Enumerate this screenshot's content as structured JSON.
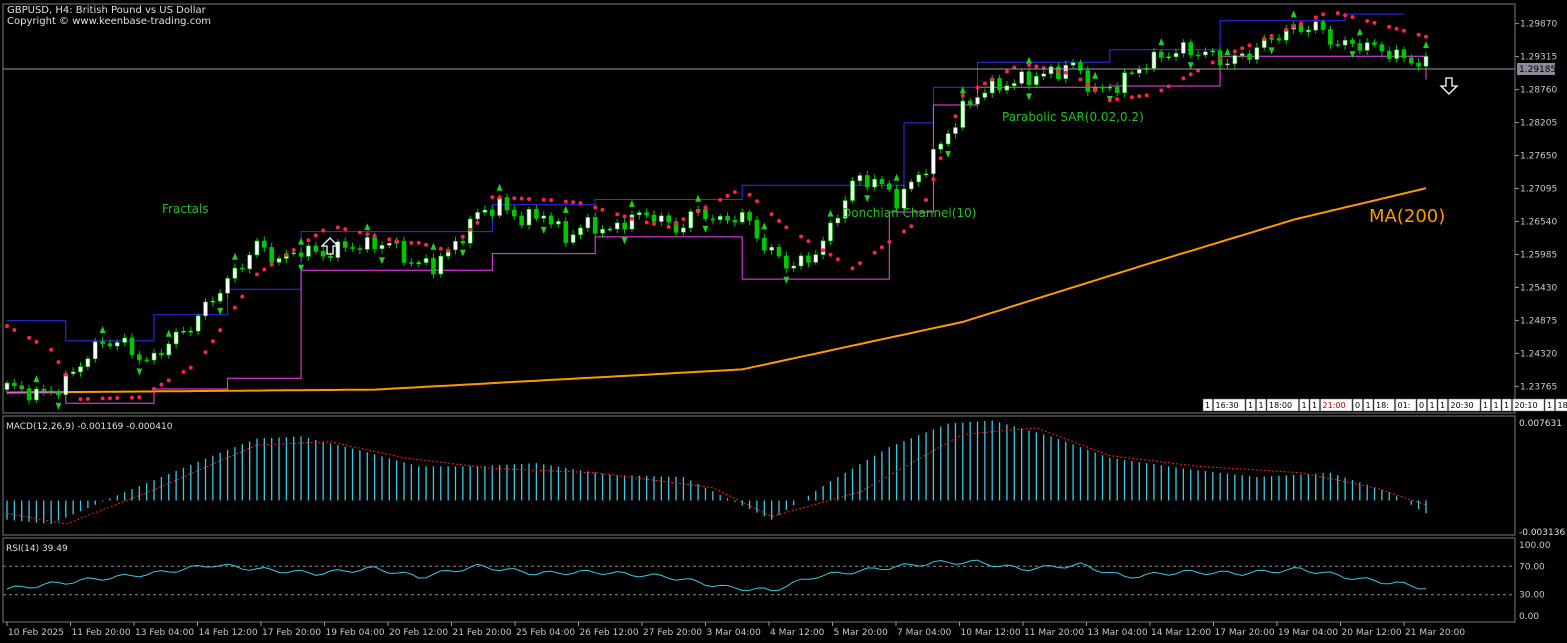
{
  "header": {
    "title": "GBPUSD, H4:  British Pound vs US Dollar",
    "copyright": "Copyright © www.keenbase-trading.com"
  },
  "price_panel": {
    "current_price_label": "1.29185",
    "y_ticks": [
      "1.29870",
      "1.29315",
      "1.28760",
      "1.28205",
      "1.27650",
      "1.27095",
      "1.26540",
      "1.25985",
      "1.25430",
      "1.24875",
      "1.24320",
      "1.23765"
    ],
    "annotations": {
      "fractals": "Fractals",
      "donchian": "Donchian Channel(10)",
      "sar": "Parabolic SAR(0.02,0.2)",
      "ma": "MA(200)"
    },
    "session_strip": [
      "1",
      "16:30",
      "1",
      "1",
      "18:00",
      "1",
      "1",
      "21:00",
      "0",
      "1",
      "18:",
      "01:",
      "0",
      "1",
      "1",
      "20:30",
      "1",
      "1",
      "1",
      "20:10",
      "1",
      "18"
    ]
  },
  "macd_panel": {
    "label": "MACD(12,26,9) -0.001169 -0.000410",
    "y_top": "0.007631",
    "y_bottom": "-0.003136"
  },
  "rsi_panel": {
    "label": "RSI(14) 39.49",
    "y_ticks": [
      "100.00",
      "70.00",
      "30.00",
      "0.00"
    ]
  },
  "x_axis": {
    "labels": [
      "10 Feb 2025",
      "11 Feb 20:00",
      "13 Feb 04:00",
      "14 Feb 12:00",
      "17 Feb 20:00",
      "19 Feb 04:00",
      "20 Feb 12:00",
      "21 Feb 20:00",
      "25 Feb 04:00",
      "26 Feb 12:00",
      "27 Feb 20:00",
      "3 Mar 04:00",
      "4 Mar 12:00",
      "5 Mar 20:00",
      "7 Mar 04:00",
      "10 Mar 12:00",
      "11 Mar 20:00",
      "13 Mar 04:00",
      "14 Mar 12:00",
      "17 Mar 20:00",
      "19 Mar 04:00",
      "20 Mar 12:00",
      "21 Mar 20:00"
    ]
  },
  "colors": {
    "background": "#000000",
    "bull_candle": "#ffffff",
    "bear_candle": "#00c800",
    "ma": "#ff9900",
    "sar": "#ff2050",
    "donchian_upper": "#3030ff",
    "donchian_lower": "#ff40ff",
    "macd_hist": "#3ec8e8",
    "macd_signal": "#ff2020",
    "rsi": "#3ec8e8",
    "text": "#c8c8c8",
    "annotation": "#22c022",
    "ma_label": "#ff9900"
  },
  "chart_data": {
    "type": "candlestick",
    "symbol": "GBPUSD",
    "timeframe": "H4",
    "ylim": [
      1.2335,
      1.3015
    ],
    "close_path": [
      [
        0,
        1.2377
      ],
      [
        4,
        1.2363
      ],
      [
        7,
        1.2372
      ],
      [
        10,
        1.2415
      ],
      [
        13,
        1.2452
      ],
      [
        16,
        1.2448
      ],
      [
        19,
        1.2415
      ],
      [
        22,
        1.245
      ],
      [
        25,
        1.2478
      ],
      [
        28,
        1.2525
      ],
      [
        31,
        1.2568
      ],
      [
        34,
        1.2615
      ],
      [
        37,
        1.2588
      ],
      [
        40,
        1.2607
      ],
      [
        43,
        1.2598
      ],
      [
        46,
        1.2612
      ],
      [
        49,
        1.2613
      ],
      [
        52,
        1.2619
      ],
      [
        55,
        1.2585
      ],
      [
        58,
        1.258
      ],
      [
        61,
        1.2615
      ],
      [
        64,
        1.2667
      ],
      [
        67,
        1.2682
      ],
      [
        70,
        1.2657
      ],
      [
        73,
        1.2667
      ],
      [
        76,
        1.2627
      ],
      [
        79,
        1.265
      ],
      [
        82,
        1.2637
      ],
      [
        85,
        1.2662
      ],
      [
        88,
        1.2665
      ],
      [
        91,
        1.264
      ],
      [
        94,
        1.2672
      ],
      [
        97,
        1.2653
      ],
      [
        100,
        1.2666
      ],
      [
        103,
        1.2613
      ],
      [
        106,
        1.2582
      ],
      [
        109,
        1.2587
      ],
      [
        112,
        1.264
      ],
      [
        115,
        1.272
      ],
      [
        118,
        1.2725
      ],
      [
        121,
        1.269
      ],
      [
        124,
        1.273
      ],
      [
        127,
        1.2783
      ],
      [
        130,
        1.2843
      ],
      [
        133,
        1.2877
      ],
      [
        136,
        1.2885
      ],
      [
        139,
        1.2896
      ],
      [
        142,
        1.2904
      ],
      [
        145,
        1.2918
      ],
      [
        148,
        1.2872
      ],
      [
        151,
        1.2883
      ],
      [
        154,
        1.2913
      ],
      [
        157,
        1.2933
      ],
      [
        160,
        1.2943
      ],
      [
        163,
        1.2937
      ],
      [
        166,
        1.2922
      ],
      [
        169,
        1.2937
      ],
      [
        172,
        1.2963
      ],
      [
        175,
        1.2978
      ],
      [
        178,
        1.2983
      ],
      [
        181,
        1.2951
      ],
      [
        184,
        1.2953
      ],
      [
        187,
        1.2943
      ],
      [
        190,
        1.2928
      ],
      [
        193,
        1.2919
      ]
    ],
    "ma200_path": [
      [
        0,
        1.2366
      ],
      [
        50,
        1.2371
      ],
      [
        100,
        1.2405
      ],
      [
        130,
        1.2485
      ],
      [
        155,
        1.2582
      ],
      [
        175,
        1.2657
      ],
      [
        193,
        1.271
      ]
    ],
    "sar_path": [
      [
        0,
        1.2478
      ],
      [
        6,
        1.2438
      ],
      [
        10,
        1.2355
      ],
      [
        18,
        1.2358
      ],
      [
        26,
        1.2415
      ],
      [
        34,
        1.2565
      ],
      [
        44,
        1.2647
      ],
      [
        54,
        1.2618
      ],
      [
        56,
        1.2618
      ],
      [
        60,
        1.2605
      ],
      [
        64,
        1.2652
      ],
      [
        66,
        1.2695
      ],
      [
        74,
        1.269
      ],
      [
        78,
        1.2685
      ],
      [
        86,
        1.2655
      ],
      [
        90,
        1.2645
      ],
      [
        100,
        1.271
      ],
      [
        106,
        1.2644
      ],
      [
        115,
        1.2575
      ],
      [
        124,
        1.2655
      ],
      [
        130,
        1.2866
      ],
      [
        138,
        1.292
      ],
      [
        145,
        1.2902
      ],
      [
        150,
        1.2858
      ],
      [
        156,
        1.2868
      ],
      [
        166,
        1.2935
      ],
      [
        180,
        1.3008
      ],
      [
        193,
        1.2965
      ]
    ],
    "donchian_upper_path": [
      [
        0,
        1.2487
      ],
      [
        8,
        1.2453
      ],
      [
        20,
        1.2497
      ],
      [
        30,
        1.254
      ],
      [
        40,
        1.2637
      ],
      [
        58,
        1.2637
      ],
      [
        66,
        1.2682
      ],
      [
        80,
        1.2691
      ],
      [
        92,
        1.2691
      ],
      [
        100,
        1.2715
      ],
      [
        112,
        1.2715
      ],
      [
        122,
        1.282
      ],
      [
        126,
        1.288
      ],
      [
        132,
        1.2922
      ],
      [
        150,
        1.2943
      ],
      [
        165,
        1.2992
      ],
      [
        182,
        1.3003
      ],
      [
        190,
        1.3003
      ]
    ],
    "donchian_lower_path": [
      [
        0,
        1.2366
      ],
      [
        8,
        1.2348
      ],
      [
        20,
        1.2372
      ],
      [
        30,
        1.239
      ],
      [
        40,
        1.2572
      ],
      [
        60,
        1.2572
      ],
      [
        66,
        1.26
      ],
      [
        80,
        1.2628
      ],
      [
        92,
        1.2628
      ],
      [
        100,
        1.2557
      ],
      [
        112,
        1.2557
      ],
      [
        120,
        1.267
      ],
      [
        126,
        1.285
      ],
      [
        132,
        1.288
      ],
      [
        150,
        1.2882
      ],
      [
        165,
        1.2932
      ],
      [
        182,
        1.2932
      ],
      [
        193,
        1.2893
      ]
    ],
    "macd_hist_path": [
      [
        0,
        -0.0018
      ],
      [
        6,
        -0.0022
      ],
      [
        14,
        0.0002
      ],
      [
        28,
        0.0042
      ],
      [
        34,
        0.0058
      ],
      [
        40,
        0.006
      ],
      [
        48,
        0.0047
      ],
      [
        56,
        0.0032
      ],
      [
        64,
        0.0032
      ],
      [
        72,
        0.0035
      ],
      [
        82,
        0.0024
      ],
      [
        92,
        0.0022
      ],
      [
        98,
        0.0002
      ],
      [
        104,
        -0.0018
      ],
      [
        112,
        0.0018
      ],
      [
        120,
        0.005
      ],
      [
        128,
        0.0072
      ],
      [
        134,
        0.0075
      ],
      [
        142,
        0.006
      ],
      [
        150,
        0.004
      ],
      [
        160,
        0.003
      ],
      [
        170,
        0.0022
      ],
      [
        180,
        0.0026
      ],
      [
        188,
        0.0008
      ],
      [
        193,
        -0.0012
      ]
    ],
    "macd_signal_path": [
      [
        0,
        -0.0012
      ],
      [
        8,
        -0.0022
      ],
      [
        20,
        0.001
      ],
      [
        34,
        0.0052
      ],
      [
        44,
        0.0055
      ],
      [
        54,
        0.004
      ],
      [
        66,
        0.003
      ],
      [
        80,
        0.0026
      ],
      [
        96,
        0.0012
      ],
      [
        104,
        -0.0015
      ],
      [
        116,
        0.0008
      ],
      [
        130,
        0.0062
      ],
      [
        140,
        0.0068
      ],
      [
        150,
        0.0042
      ],
      [
        162,
        0.0032
      ],
      [
        176,
        0.0026
      ],
      [
        186,
        0.0012
      ],
      [
        193,
        -0.0004
      ]
    ],
    "rsi_path": [
      [
        0,
        38
      ],
      [
        6,
        45
      ],
      [
        12,
        52
      ],
      [
        20,
        60
      ],
      [
        28,
        72
      ],
      [
        34,
        66
      ],
      [
        42,
        60
      ],
      [
        50,
        67
      ],
      [
        56,
        55
      ],
      [
        64,
        70
      ],
      [
        72,
        60
      ],
      [
        80,
        62
      ],
      [
        90,
        55
      ],
      [
        98,
        40
      ],
      [
        104,
        36
      ],
      [
        110,
        56
      ],
      [
        118,
        66
      ],
      [
        126,
        75
      ],
      [
        132,
        76
      ],
      [
        138,
        66
      ],
      [
        146,
        72
      ],
      [
        152,
        55
      ],
      [
        160,
        62
      ],
      [
        168,
        60
      ],
      [
        176,
        66
      ],
      [
        184,
        52
      ],
      [
        189,
        46
      ],
      [
        193,
        39.49
      ]
    ]
  }
}
